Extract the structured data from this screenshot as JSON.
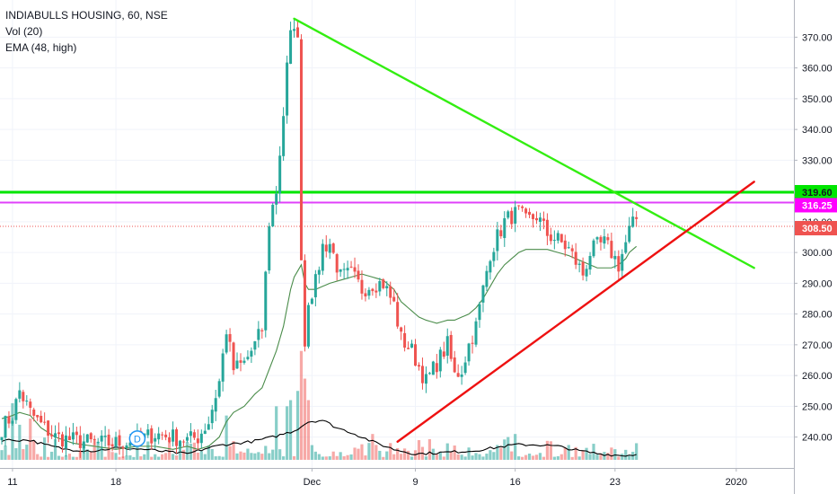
{
  "legend": {
    "symbol_line": "INDIABULLS HOUSING, 60, NSE",
    "volume_line": "Vol (20)",
    "ema_line": "EMA (48, high)"
  },
  "event_marker": {
    "label": "D"
  },
  "chart_data": {
    "type": "candlestick",
    "symbol": "INDIABULLS HOUSING",
    "interval": "60",
    "exchange": "NSE",
    "ylim": [
      232,
      378
    ],
    "y_ticks": [
      240,
      250,
      260,
      270,
      280,
      290,
      300,
      310,
      320,
      330,
      340,
      350,
      360,
      370
    ],
    "y_tick_labels": [
      "240.00",
      "250.00",
      "260.00",
      "270.00",
      "280.00",
      "290.00",
      "300.00",
      "310.00",
      "320.00",
      "330.00",
      "340.00",
      "350.00",
      "360.00",
      "370.00"
    ],
    "x_ticks": [
      {
        "label": "11",
        "bar": 3
      },
      {
        "label": "18",
        "bar": 32
      },
      {
        "label": "Dec",
        "bar": 87
      },
      {
        "label": "9",
        "bar": 116
      },
      {
        "label": "16",
        "bar": 144
      },
      {
        "label": "23",
        "bar": 172
      },
      {
        "label": "2020",
        "bar": 206
      }
    ],
    "bars_visible": 225,
    "price_tags": [
      {
        "label": "319.60",
        "value": 319.6,
        "color": "#00e600",
        "text_color": "#131722"
      },
      {
        "label": "316.25",
        "value": 316.25,
        "color": "#ff00ff",
        "text_color": "#ffffff"
      },
      {
        "label": "308.50",
        "value": 308.5,
        "color": "#ef5350",
        "text_color": "#ffffff"
      }
    ],
    "horizontal_lines": [
      {
        "value": 319.6,
        "color": "#00e600",
        "width": 3
      },
      {
        "value": 316.25,
        "color": "#e040fb",
        "width": 2
      },
      {
        "value": 308.5,
        "color": "#ef5350",
        "width": 1,
        "dotted": true
      }
    ],
    "trend_lines": [
      {
        "name": "green",
        "color": "#33ee11",
        "x1": 82,
        "y1": 376,
        "x2": 211,
        "y2": 295
      },
      {
        "name": "red",
        "color": "#ee1111",
        "x1": 111,
        "y1": 238.5,
        "x2": 211,
        "y2": 323
      }
    ],
    "up_color": "#26a69a",
    "down_color": "#ef5350",
    "ema_color": "#4a8c4a",
    "volume_line_color": "#000000",
    "anchors": [
      [
        0,
        243,
        246
      ],
      [
        3,
        247,
        247
      ],
      [
        5,
        255,
        248
      ],
      [
        8,
        248,
        247
      ],
      [
        11,
        244,
        243
      ],
      [
        15,
        240,
        240
      ],
      [
        20,
        239,
        238
      ],
      [
        26,
        238,
        237
      ],
      [
        32,
        238,
        236
      ],
      [
        38,
        239,
        237
      ],
      [
        43,
        241,
        237
      ],
      [
        48,
        240,
        236
      ],
      [
        52,
        239,
        237
      ],
      [
        55,
        240,
        236
      ],
      [
        58,
        245,
        237
      ],
      [
        61,
        258,
        240
      ],
      [
        63,
        275,
        245
      ],
      [
        65,
        262,
        248
      ],
      [
        68,
        264,
        250
      ],
      [
        71,
        270,
        254
      ],
      [
        73,
        275,
        256
      ],
      [
        75,
        310,
        262
      ],
      [
        77,
        320,
        268
      ],
      [
        79,
        345,
        276
      ],
      [
        80,
        360,
        282
      ],
      [
        81,
        370,
        288
      ],
      [
        82,
        375,
        292
      ],
      [
        83,
        368,
        294
      ],
      [
        84,
        300,
        296
      ],
      [
        85,
        270,
        290
      ],
      [
        86,
        285,
        288
      ],
      [
        88,
        290,
        288
      ],
      [
        90,
        302,
        289
      ],
      [
        92,
        303,
        290
      ],
      [
        95,
        292,
        291
      ],
      [
        98,
        293,
        292
      ],
      [
        101,
        288,
        293
      ],
      [
        104,
        290,
        292
      ],
      [
        107,
        290,
        291
      ],
      [
        110,
        283,
        288
      ],
      [
        112,
        272,
        284
      ],
      [
        115,
        268,
        281
      ],
      [
        117,
        263,
        279
      ],
      [
        119,
        258,
        278
      ],
      [
        122,
        264,
        277
      ],
      [
        125,
        270,
        278
      ],
      [
        127,
        260,
        278
      ],
      [
        129,
        262,
        279
      ],
      [
        131,
        270,
        280
      ],
      [
        133,
        276,
        282
      ],
      [
        135,
        288,
        285
      ],
      [
        137,
        300,
        289
      ],
      [
        139,
        305,
        293
      ],
      [
        141,
        310,
        296
      ],
      [
        143,
        312,
        298
      ],
      [
        145,
        313,
        300
      ],
      [
        147,
        310,
        301
      ],
      [
        150,
        312,
        301
      ],
      [
        153,
        306,
        301
      ],
      [
        156,
        304,
        300
      ],
      [
        159,
        301,
        299
      ],
      [
        161,
        297,
        298
      ],
      [
        163,
        293,
        297
      ],
      [
        165,
        300,
        296
      ],
      [
        167,
        302,
        295
      ],
      [
        169,
        303,
        295
      ],
      [
        171,
        300,
        295
      ],
      [
        173,
        296,
        296
      ],
      [
        175,
        303,
        298
      ],
      [
        176,
        307,
        300
      ],
      [
        178,
        311,
        302
      ]
    ],
    "volume_anchors": [
      [
        0,
        239
      ],
      [
        8,
        239
      ],
      [
        12,
        237.5
      ],
      [
        18,
        236
      ],
      [
        26,
        235.5
      ],
      [
        32,
        236.5
      ],
      [
        40,
        236
      ],
      [
        48,
        235
      ],
      [
        52,
        234.5
      ],
      [
        58,
        236.5
      ],
      [
        62,
        237.5
      ],
      [
        70,
        238.5
      ],
      [
        76,
        240
      ],
      [
        82,
        242
      ],
      [
        86,
        245
      ],
      [
        90,
        245.5
      ],
      [
        94,
        243
      ],
      [
        98,
        241.5
      ],
      [
        104,
        238.5
      ],
      [
        110,
        236
      ],
      [
        116,
        234.5
      ],
      [
        124,
        235
      ],
      [
        132,
        235.5
      ],
      [
        138,
        236.5
      ],
      [
        144,
        237.5
      ],
      [
        150,
        237.5
      ],
      [
        156,
        237
      ],
      [
        162,
        235.5
      ],
      [
        168,
        234.5
      ],
      [
        174,
        234
      ],
      [
        178,
        234.3
      ]
    ],
    "volume_spikes": [
      {
        "bar": 84,
        "value": 268,
        "dir": "down"
      },
      {
        "bar": 85,
        "value": 259,
        "dir": "down"
      },
      {
        "bar": 86,
        "value": 252,
        "dir": "down"
      },
      {
        "bar": 83,
        "value": 255,
        "dir": "up"
      },
      {
        "bar": 81,
        "value": 252,
        "dir": "up"
      },
      {
        "bar": 80,
        "value": 250,
        "dir": "up"
      },
      {
        "bar": 3,
        "value": 251,
        "dir": "up"
      },
      {
        "bar": 8,
        "value": 246,
        "dir": "down"
      },
      {
        "bar": 5,
        "value": 244,
        "dir": "up"
      },
      {
        "bar": 63,
        "value": 247,
        "dir": "up"
      },
      {
        "bar": 77,
        "value": 250,
        "dir": "up"
      },
      {
        "bar": 144,
        "value": 241,
        "dir": "up"
      },
      {
        "bar": 142,
        "value": 240,
        "dir": "up"
      },
      {
        "bar": 178,
        "value": 238,
        "dir": "up"
      },
      {
        "bar": 117,
        "value": 239,
        "dir": "down"
      },
      {
        "bar": 104,
        "value": 241,
        "dir": "down"
      }
    ],
    "event_bar": 38
  }
}
